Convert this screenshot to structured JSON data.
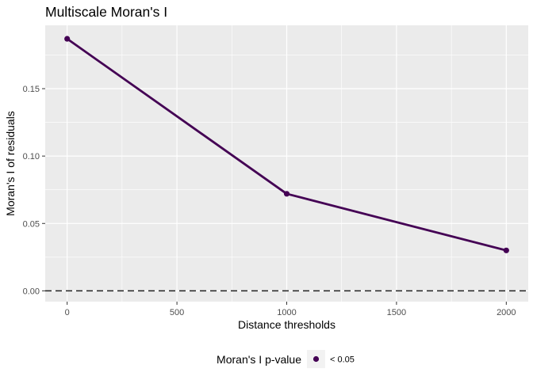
{
  "chart_data": {
    "type": "line",
    "title": "Multiscale Moran's I",
    "xlabel": "Distance thresholds",
    "ylabel": "Moran's I of residuals",
    "xlim": [
      -100,
      2100
    ],
    "ylim": [
      -0.008,
      0.197
    ],
    "x_ticks": [
      0,
      500,
      1000,
      1500,
      2000
    ],
    "x_tick_labels": [
      "0",
      "500",
      "1000",
      "1500",
      "2000"
    ],
    "x_minor": [
      250,
      750,
      1250,
      1750
    ],
    "y_ticks": [
      0.0,
      0.05,
      0.1,
      0.15
    ],
    "y_tick_labels": [
      "0.00",
      "0.05",
      "0.10",
      "0.15"
    ],
    "y_minor": [
      0.025,
      0.075,
      0.125,
      0.175
    ],
    "grid": true,
    "reference_line": {
      "y": 0,
      "style": "dashed"
    },
    "series": [
      {
        "x": [
          0,
          1000,
          2000
        ],
        "values": [
          0.187,
          0.072,
          0.03
        ],
        "color": "#440154"
      }
    ],
    "legend": {
      "position": "bottom",
      "title": "Moran's I p-value",
      "entries": [
        {
          "label": "< 0.05",
          "color": "#440154"
        }
      ]
    },
    "colors": {
      "panel_bg": "#ebebeb",
      "grid": "#ffffff",
      "series": "#440154",
      "reference_line": "#222222"
    }
  }
}
